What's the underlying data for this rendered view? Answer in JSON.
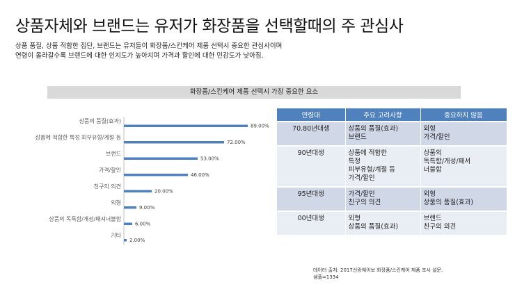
{
  "header": {
    "title": "상품자체와 브랜드는 유저가 화장품을 선택할때의 주 관심사",
    "subtitle_lines": [
      "상품 품질, 상품 적합한 집단, 브랜드는 유저들이 화장품/스킨케어 제품 선택시 중요한 관심사이며",
      "연령이 올라갈수록 브랜드에 대한 인지도가 높아지며 가격과 할인에 대한 민감도가 낮아짐."
    ]
  },
  "banner": {
    "label": "화장품/스킨케어 제품 선택시 가장 중요한 요소"
  },
  "chart_data": {
    "type": "bar",
    "orientation": "horizontal",
    "title": "화장품/스킨케어 제품 선택시 가장 중요한 요소",
    "categories": [
      "상품의 품질(효과)",
      "상품에 적합한 특정 피부유형/계절 등",
      "브랜드",
      "가격/할인",
      "친구의 의견",
      "외형",
      "상품의 독특함/개성/패셔너블함",
      "기타"
    ],
    "values": [
      89,
      72,
      53,
      46,
      20,
      9,
      6,
      2
    ],
    "value_labels": [
      "89.00%",
      "72.00%",
      "53.00%",
      "46.00%",
      "20.00%",
      "9.00%",
      "6.00%",
      "2.00%"
    ],
    "xlim": [
      0,
      100
    ],
    "unit": "%",
    "color": "#4f81bd",
    "grid": false
  },
  "table": {
    "headers": [
      "연령대",
      "주요 고려사항",
      "중요하지 않음"
    ],
    "rows": [
      {
        "age": "70.80년대생",
        "main": [
          "상품의 품질(효과)",
          "브랜드"
        ],
        "notimportant": [
          "외형",
          "가격/할인"
        ]
      },
      {
        "age": "90년대생",
        "main": [
          "상품에 적합한",
          "특정",
          "피부유형/계절 등",
          "가격/할인"
        ],
        "notimportant": [
          "상품의",
          "독특함/개성/패셔",
          "너블함"
        ]
      },
      {
        "age": "95년대생",
        "main": [
          "가격/할인",
          "친구의 의견"
        ],
        "notimportant": [
          "외형",
          "상품의 품질(효과)"
        ]
      },
      {
        "age": "00년대생",
        "main": [
          "외형",
          "상품의 품질(효과)"
        ],
        "notimportant": [
          "브랜드",
          "친구의 의견"
        ]
      }
    ]
  },
  "footer": {
    "source": "데이터 출처: 2017신랑웨이보 화장품/스킨케어 제품 조사 설문.",
    "sample": "샘플=1334"
  }
}
